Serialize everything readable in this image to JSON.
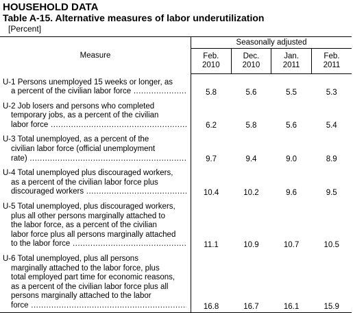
{
  "header": {
    "section": "HOUSEHOLD DATA",
    "title": "Table A-15. Alternative measures of labor underutilization",
    "unit": "[Percent]"
  },
  "table": {
    "measure_header": "Measure",
    "group_header": "Seasonally adjusted",
    "columns": [
      [
        "Feb.",
        "2010"
      ],
      [
        "Dec.",
        "2010"
      ],
      [
        "Jan.",
        "2011"
      ],
      [
        "Feb.",
        "2011"
      ]
    ],
    "rows": [
      {
        "lines": [
          "U-1 Persons unemployed 15 weeks or longer, as",
          "a percent of the civilian labor force"
        ],
        "values": [
          "5.8",
          "5.6",
          "5.5",
          "5.3"
        ]
      },
      {
        "lines": [
          "U-2 Job losers and persons who completed",
          "temporary jobs, as a percent of the civilian",
          "labor force"
        ],
        "values": [
          "6.2",
          "5.8",
          "5.6",
          "5.4"
        ]
      },
      {
        "lines": [
          "U-3 Total unemployed, as a percent of the",
          "civilian labor force (official unemployment",
          "rate)"
        ],
        "values": [
          "9.7",
          "9.4",
          "9.0",
          "8.9"
        ]
      },
      {
        "lines": [
          "U-4 Total unemployed plus discouraged workers,",
          "as a percent of the civilian labor force plus",
          "discouraged workers"
        ],
        "values": [
          "10.4",
          "10.2",
          "9.6",
          "9.5"
        ]
      },
      {
        "lines": [
          "U-5 Total unemployed, plus discouraged workers,",
          "plus all other persons marginally attached to",
          "the labor force, as a percent of the civilian",
          "labor force plus all persons marginally attached",
          "to the labor force"
        ],
        "values": [
          "11.1",
          "10.9",
          "10.7",
          "10.5"
        ]
      },
      {
        "lines": [
          "U-6 Total unemployed, plus all persons",
          "marginally attached to the labor force, plus",
          "total employed part time for economic reasons,",
          "as a percent of the civilian labor force plus all",
          "persons marginally attached to the labor",
          "force"
        ],
        "values": [
          "16.8",
          "16.7",
          "16.1",
          "15.9"
        ]
      }
    ]
  }
}
